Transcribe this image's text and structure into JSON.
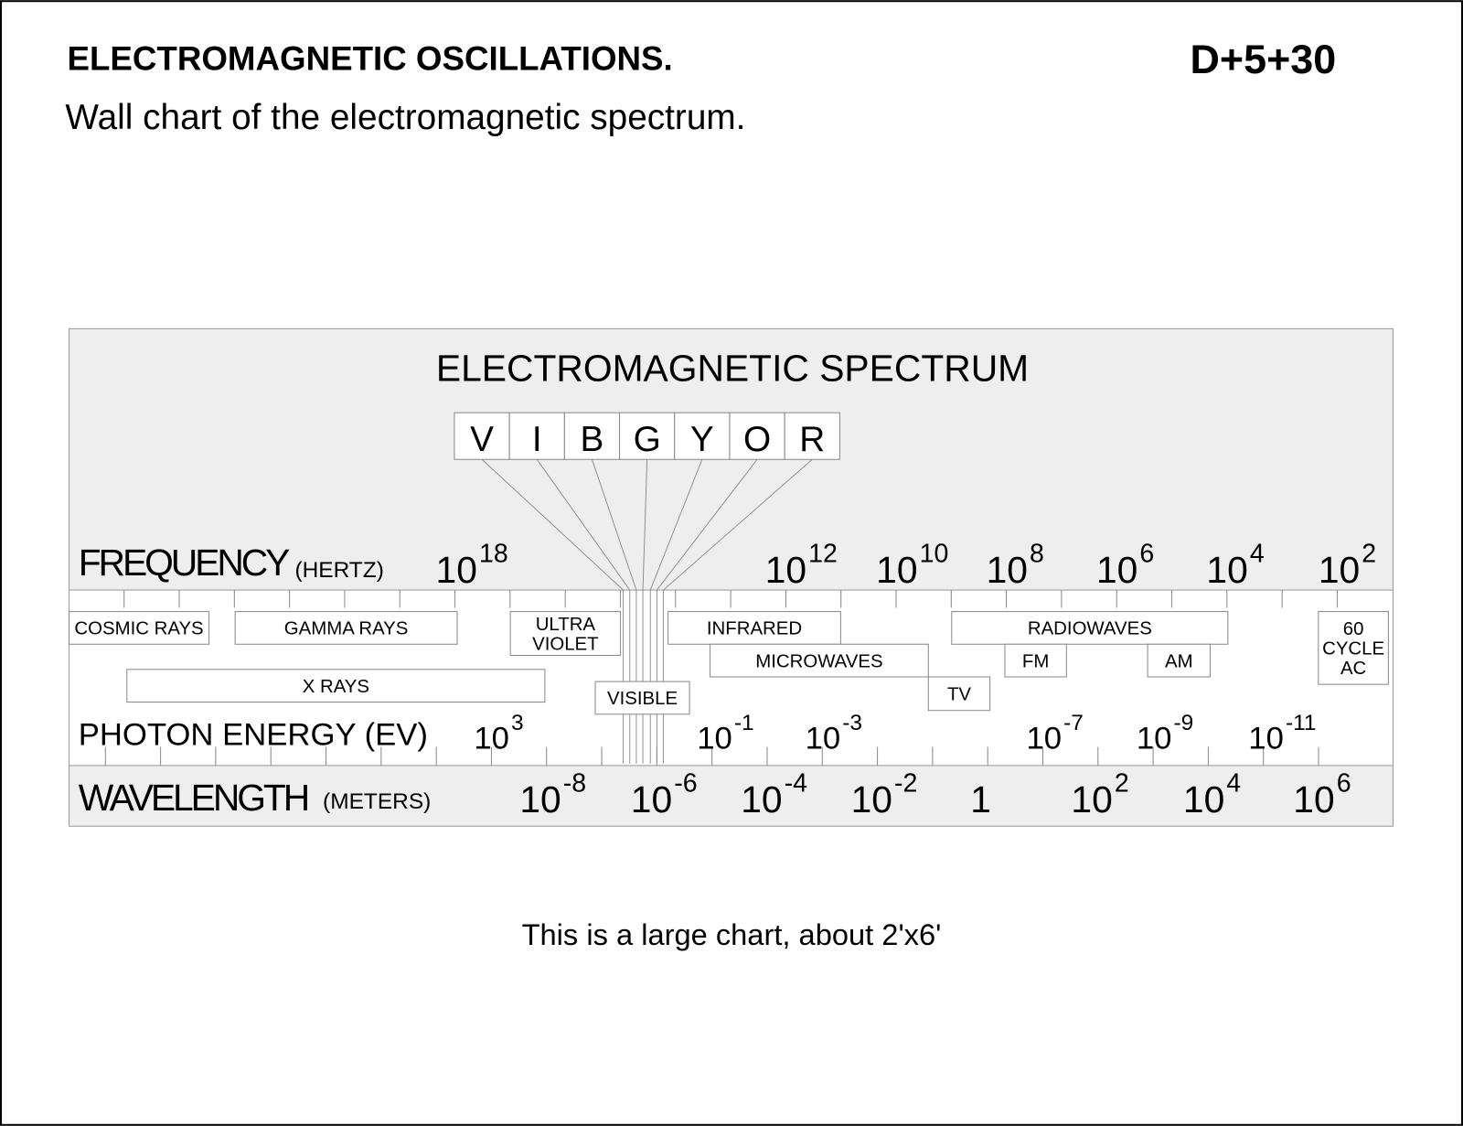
{
  "header": {
    "title": "ELECTROMAGNETIC OSCILLATIONS.",
    "code": "D+5+30",
    "subtitle": "Wall chart of the electromagnetic spectrum."
  },
  "chart": {
    "title": "ELECTROMAGNETIC SPECTRUM",
    "colors": [
      "V",
      "I",
      "B",
      "G",
      "Y",
      "O",
      "R"
    ],
    "frequency": {
      "label": "FREQUENCY",
      "unit": "(HERTZ)",
      "ticks": [
        {
          "base": "10",
          "exp": "18"
        },
        {
          "base": "10",
          "exp": "12"
        },
        {
          "base": "10",
          "exp": "10"
        },
        {
          "base": "10",
          "exp": "8"
        },
        {
          "base": "10",
          "exp": "6"
        },
        {
          "base": "10",
          "exp": "4"
        },
        {
          "base": "10",
          "exp": "2"
        }
      ]
    },
    "photon_energy": {
      "label": "PHOTON ENERGY (EV)",
      "ticks": [
        {
          "base": "10",
          "exp": "3"
        },
        {
          "base": "10",
          "exp": "-1"
        },
        {
          "base": "10",
          "exp": "-3"
        },
        {
          "base": "10",
          "exp": "-7"
        },
        {
          "base": "10",
          "exp": "-9"
        },
        {
          "base": "10",
          "exp": "-11"
        }
      ]
    },
    "wavelength": {
      "label": "WAVELENGTH",
      "unit": "(METERS)",
      "ticks": [
        {
          "base": "10",
          "exp": "-8"
        },
        {
          "base": "10",
          "exp": "-6"
        },
        {
          "base": "10",
          "exp": "-4"
        },
        {
          "base": "10",
          "exp": "-2"
        },
        {
          "base": "1",
          "exp": ""
        },
        {
          "base": "10",
          "exp": "2"
        },
        {
          "base": "10",
          "exp": "4"
        },
        {
          "base": "10",
          "exp": "6"
        }
      ]
    },
    "bands": [
      {
        "lines": [
          "COSMIC RAYS"
        ]
      },
      {
        "lines": [
          "GAMMA RAYS"
        ]
      },
      {
        "lines": [
          "ULTRA",
          "VIOLET"
        ]
      },
      {
        "lines": [
          "INFRARED"
        ]
      },
      {
        "lines": [
          "MICROWAVES"
        ]
      },
      {
        "lines": [
          "RADIOWAVES"
        ]
      },
      {
        "lines": [
          "FM"
        ]
      },
      {
        "lines": [
          "AM"
        ]
      },
      {
        "lines": [
          "TV"
        ]
      },
      {
        "lines": [
          "60",
          "CYCLE",
          "AC"
        ]
      },
      {
        "lines": [
          "X RAYS"
        ]
      },
      {
        "lines": [
          "VISIBLE"
        ]
      }
    ]
  },
  "footer": {
    "note": "This is a large chart, about 2'x6'"
  }
}
